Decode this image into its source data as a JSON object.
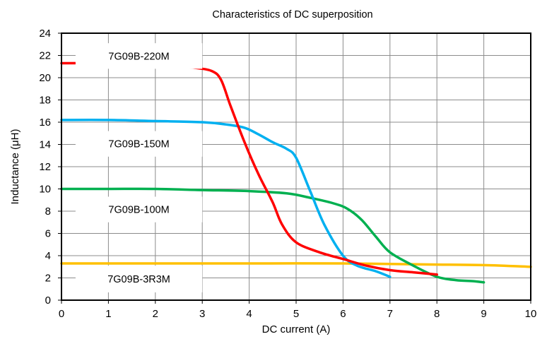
{
  "chart_data": {
    "type": "line",
    "title": "Characteristics of DC superposition",
    "xlabel": "DC current (A)",
    "ylabel": "Inductance (μH)",
    "xlim": [
      0,
      10
    ],
    "ylim": [
      0,
      24
    ],
    "x_ticks": [
      "0",
      "1",
      "2",
      "3",
      "4",
      "5",
      "6",
      "7",
      "8",
      "9",
      "10"
    ],
    "y_ticks": [
      "0",
      "2",
      "4",
      "6",
      "8",
      "10",
      "12",
      "14",
      "16",
      "18",
      "20",
      "22",
      "24"
    ],
    "grid": true,
    "series": [
      {
        "name": "7G09B-220M",
        "color": "#ff0000",
        "x": [
          0,
          1,
          2,
          2.8,
          3.2,
          3.4,
          3.6,
          3.9,
          4.2,
          4.5,
          4.7,
          5.0,
          5.5,
          6.0,
          6.5,
          7.0,
          7.5,
          8.0
        ],
        "y": [
          21.3,
          21.3,
          21.2,
          20.9,
          20.6,
          19.8,
          17.5,
          14.2,
          11.3,
          8.8,
          6.8,
          5.2,
          4.3,
          3.7,
          3.1,
          2.7,
          2.5,
          2.3
        ]
      },
      {
        "name": "7G09B-150M",
        "color": "#00b0f0",
        "x": [
          0,
          1,
          2,
          3,
          3.5,
          3.9,
          4.2,
          4.5,
          4.8,
          5.0,
          5.3,
          5.6,
          6.0,
          6.3,
          6.7,
          7.0
        ],
        "y": [
          16.2,
          16.2,
          16.1,
          16.0,
          15.8,
          15.5,
          14.9,
          14.2,
          13.6,
          12.8,
          9.8,
          6.8,
          4.0,
          3.1,
          2.6,
          2.1
        ]
      },
      {
        "name": "7G09B-100M",
        "color": "#00b050",
        "x": [
          0,
          1,
          2,
          3,
          4,
          4.8,
          5.3,
          5.8,
          6.1,
          6.4,
          6.7,
          7.0,
          7.5,
          8.0,
          8.4,
          8.8,
          9.0
        ],
        "y": [
          10.0,
          10.0,
          10.0,
          9.9,
          9.8,
          9.6,
          9.2,
          8.7,
          8.2,
          7.2,
          5.7,
          4.3,
          3.1,
          2.1,
          1.8,
          1.7,
          1.6
        ]
      },
      {
        "name": "7G09B-3R3M",
        "color": "#ffc000",
        "x": [
          0,
          2,
          4,
          6,
          8,
          9,
          10
        ],
        "y": [
          3.3,
          3.3,
          3.3,
          3.3,
          3.2,
          3.15,
          3.0
        ]
      }
    ]
  }
}
